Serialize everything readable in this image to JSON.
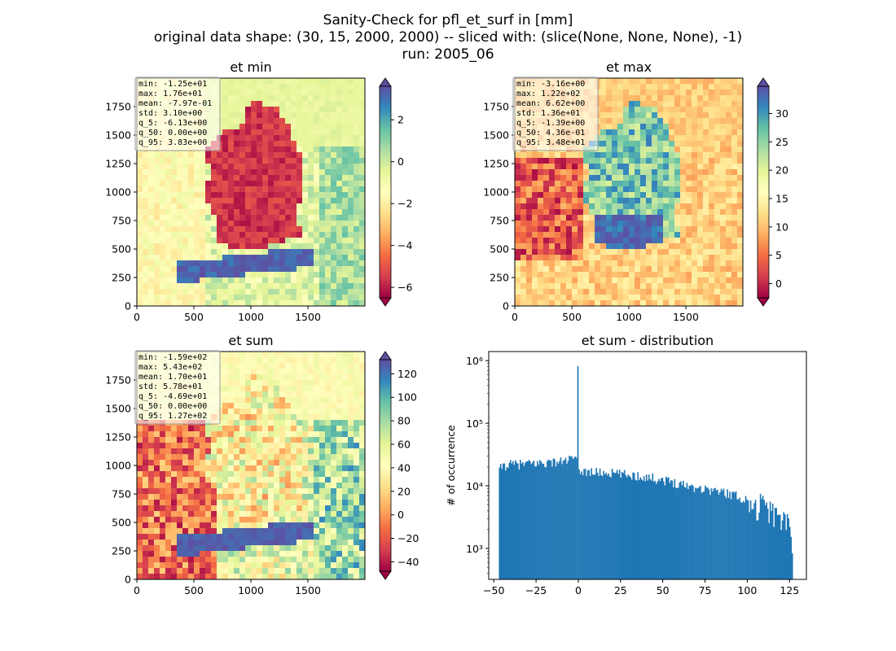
{
  "figure": {
    "suptitle": [
      "Sanity-Check for pfl_et_surf in [mm]",
      "original data shape: (30, 15, 2000, 2000) -- sliced with: (slice(None, None, None), -1)",
      "run: 2005_06"
    ]
  },
  "colormap": {
    "name": "Spectral",
    "stops": [
      "#9e0142",
      "#d53e4f",
      "#f46d43",
      "#fdae61",
      "#fee08b",
      "#ffffbf",
      "#e6f598",
      "#abdda4",
      "#66c2a5",
      "#3288bd",
      "#5e4fa2"
    ]
  },
  "chart_data": [
    {
      "type": "heatmap",
      "title": "et min",
      "x_ticks": [
        "0",
        "500",
        "1000",
        "1500"
      ],
      "y_ticks": [
        "0",
        "250",
        "500",
        "750",
        "1000",
        "1250",
        "1500",
        "1750"
      ],
      "xlim": [
        0,
        2000
      ],
      "ylim": [
        0,
        2000
      ],
      "colorbar": {
        "range": [
          -6.5,
          3.6
        ],
        "ticks": [
          "2",
          "0",
          "−2",
          "−4",
          "−6"
        ],
        "tick_values": [
          2,
          0,
          -2,
          -4,
          -6
        ],
        "extend": "both"
      },
      "stats": [
        "min: -1.25e+01",
        "max: 1.76e+01",
        "mean: -7.97e-01",
        "std: 3.10e+00",
        "q_5: -6.13e+00",
        "q_50: 0.00e+00",
        "q_95: 3.83e+00"
      ]
    },
    {
      "type": "heatmap",
      "title": "et max",
      "x_ticks": [
        "0",
        "500",
        "1000",
        "1500"
      ],
      "y_ticks": [
        "0",
        "250",
        "500",
        "750",
        "1000",
        "1250",
        "1500",
        "1750"
      ],
      "xlim": [
        0,
        2000
      ],
      "ylim": [
        0,
        2000
      ],
      "colorbar": {
        "range": [
          -2.5,
          34.8
        ],
        "ticks": [
          "30",
          "25",
          "20",
          "15",
          "10",
          "5",
          "0"
        ],
        "tick_values": [
          30,
          25,
          20,
          15,
          10,
          5,
          0
        ],
        "extend": "both"
      },
      "stats": [
        "min: -3.16e+00",
        "max: 1.22e+02",
        "mean: 6.62e+00",
        "std: 1.36e+01",
        "q_5: -1.39e+00",
        "q_50: 4.36e-01",
        "q_95: 3.48e+01"
      ]
    },
    {
      "type": "heatmap",
      "title": "et sum",
      "x_ticks": [
        "0",
        "500",
        "1000",
        "1500"
      ],
      "y_ticks": [
        "0",
        "250",
        "500",
        "750",
        "1000",
        "1250",
        "1500",
        "1750"
      ],
      "xlim": [
        0,
        2000
      ],
      "ylim": [
        0,
        2000
      ],
      "colorbar": {
        "range": [
          -48,
          132
        ],
        "ticks": [
          "120",
          "100",
          "80",
          "60",
          "40",
          "20",
          "0",
          "−20",
          "−40"
        ],
        "tick_values": [
          120,
          100,
          80,
          60,
          40,
          20,
          0,
          -20,
          -40
        ],
        "extend": "both"
      },
      "stats": [
        "min: -1.59e+02",
        "max: 5.43e+02",
        "mean: 1.70e+01",
        "std: 5.78e+01",
        "q_5: -4.69e+01",
        "q_50: 0.00e+00",
        "q_95: 1.27e+02"
      ]
    },
    {
      "type": "bar",
      "title": "et sum - distribution",
      "ylabel": "# of occurrence",
      "y_scale": "log",
      "xlim": [
        -53,
        135
      ],
      "ylim": [
        320,
        1400000
      ],
      "x_ticks": [
        "−50",
        "−25",
        "0",
        "25",
        "50",
        "75",
        "100",
        "125"
      ],
      "x_tick_values": [
        -50,
        -25,
        0,
        25,
        50,
        75,
        100,
        125
      ],
      "y_ticks": [
        "10³",
        "10⁴",
        "10⁵",
        "10⁶"
      ],
      "y_tick_values": [
        1000,
        10000,
        100000,
        1000000
      ],
      "bar_color": "#1f77b4",
      "bin_range": [
        -47,
        127
      ],
      "spike": {
        "x": 0,
        "value": 820000
      },
      "profile_x": [
        -47,
        -45,
        -40,
        -30,
        -20,
        -10,
        -2,
        1,
        10,
        20,
        30,
        40,
        50,
        60,
        70,
        80,
        90,
        100,
        110,
        120,
        125,
        127
      ],
      "profile_y": [
        17000,
        21000,
        22000,
        22500,
        23500,
        24500,
        28000,
        17500,
        16500,
        16000,
        15000,
        14000,
        12500,
        11000,
        9500,
        8500,
        7500,
        6000,
        5000,
        3500,
        2800,
        900
      ]
    }
  ]
}
